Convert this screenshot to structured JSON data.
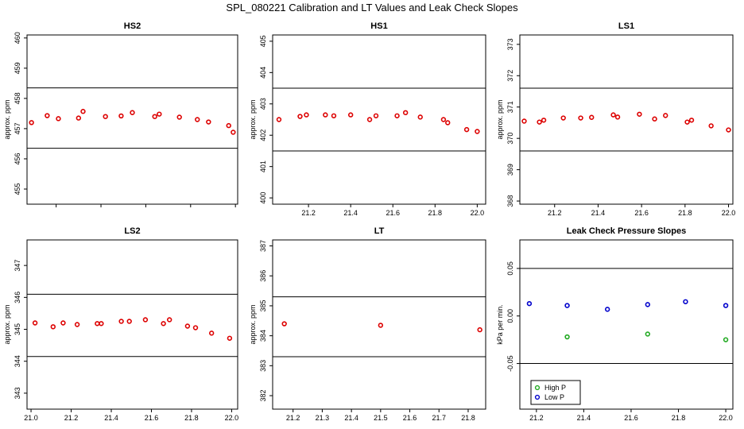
{
  "figure_title": "SPL_080221  Calibration and LT Values and Leak Check Slopes",
  "colors": {
    "data": "#dd0000",
    "high": "#22aa22",
    "low": "#0000cc",
    "axis": "#000000"
  },
  "chart_data": [
    {
      "type": "scatter",
      "title": "HS2",
      "ylabel": "approx. ppm",
      "xlim": [
        21.07,
        22.01
      ],
      "ylim": [
        454.5,
        460.1
      ],
      "xticks": [
        21.2,
        21.4,
        21.6,
        21.8,
        22.0
      ],
      "xtick_labels": [],
      "yticks": [
        455,
        456,
        457,
        458,
        459,
        460
      ],
      "hlines": [
        458.35,
        456.35
      ],
      "series": [
        {
          "x": [
            21.09,
            21.16,
            21.21,
            21.3,
            21.32,
            21.42,
            21.49,
            21.54,
            21.64,
            21.66,
            21.75,
            21.83,
            21.88,
            21.97,
            21.99
          ],
          "y": [
            457.2,
            457.43,
            457.33,
            457.35,
            457.57,
            457.4,
            457.42,
            457.53,
            457.4,
            457.48,
            457.38,
            457.3,
            457.22,
            457.1,
            456.88
          ]
        }
      ]
    },
    {
      "type": "scatter",
      "title": "HS1",
      "ylabel": "approx. ppm",
      "xlim": [
        21.03,
        22.04
      ],
      "ylim": [
        399.8,
        405.2
      ],
      "xticks": [
        21.2,
        21.4,
        21.6,
        21.8,
        22.0
      ],
      "xtick_labels": [
        "21.2",
        "21.4",
        "21.6",
        "21.8",
        "22.0"
      ],
      "yticks": [
        400,
        401,
        402,
        403,
        404,
        405
      ],
      "hlines": [
        403.5,
        401.5
      ],
      "series": [
        {
          "x": [
            21.06,
            21.16,
            21.19,
            21.28,
            21.32,
            21.4,
            21.49,
            21.52,
            21.62,
            21.66,
            21.73,
            21.84,
            21.86,
            21.95,
            22.0
          ],
          "y": [
            402.5,
            402.6,
            402.65,
            402.65,
            402.62,
            402.65,
            402.5,
            402.62,
            402.62,
            402.72,
            402.58,
            402.5,
            402.4,
            402.18,
            402.12
          ]
        }
      ]
    },
    {
      "type": "scatter",
      "title": "LS1",
      "ylabel": "approx. ppm",
      "xlim": [
        21.04,
        22.02
      ],
      "ylim": [
        367.9,
        373.3
      ],
      "xticks": [
        21.2,
        21.4,
        21.6,
        21.8,
        22.0
      ],
      "xtick_labels": [
        "21.2",
        "21.4",
        "21.6",
        "21.8",
        "22.0"
      ],
      "yticks": [
        368,
        369,
        370,
        371,
        372,
        373
      ],
      "hlines": [
        371.6,
        369.6
      ],
      "series": [
        {
          "x": [
            21.06,
            21.13,
            21.15,
            21.24,
            21.32,
            21.37,
            21.47,
            21.49,
            21.59,
            21.66,
            21.71,
            21.81,
            21.83,
            21.92,
            22.0
          ],
          "y": [
            370.55,
            370.52,
            370.58,
            370.65,
            370.65,
            370.67,
            370.75,
            370.68,
            370.77,
            370.62,
            370.73,
            370.52,
            370.58,
            370.4,
            370.27
          ]
        }
      ]
    },
    {
      "type": "scatter",
      "title": "LS2",
      "ylabel": "approx. ppm",
      "xlim": [
        20.98,
        22.03
      ],
      "ylim": [
        342.5,
        347.8
      ],
      "xticks": [
        21.0,
        21.2,
        21.4,
        21.6,
        21.8,
        22.0
      ],
      "xtick_labels": [
        "21.0",
        "21.2",
        "21.4",
        "21.6",
        "21.8",
        "22.0"
      ],
      "yticks": [
        343,
        344,
        345,
        346,
        347
      ],
      "hlines": [
        346.1,
        344.15
      ],
      "series": [
        {
          "x": [
            21.02,
            21.11,
            21.16,
            21.23,
            21.33,
            21.35,
            21.45,
            21.49,
            21.57,
            21.66,
            21.69,
            21.78,
            21.82,
            21.9,
            21.99
          ],
          "y": [
            345.2,
            345.08,
            345.2,
            345.15,
            345.18,
            345.18,
            345.25,
            345.25,
            345.3,
            345.18,
            345.3,
            345.1,
            345.05,
            344.88,
            344.72
          ]
        }
      ]
    },
    {
      "type": "scatter",
      "title": "LT",
      "ylabel": "approx. ppm",
      "xlim": [
        21.13,
        21.86
      ],
      "ylim": [
        381.55,
        387.2
      ],
      "xticks": [
        21.2,
        21.3,
        21.4,
        21.5,
        21.6,
        21.7,
        21.8
      ],
      "xtick_labels": [
        "21.2",
        "21.3",
        "21.4",
        "21.5",
        "21.6",
        "21.7",
        "21.8"
      ],
      "yticks": [
        382,
        383,
        384,
        385,
        386,
        387
      ],
      "hlines": [
        385.3,
        383.3
      ],
      "series": [
        {
          "x": [
            21.17,
            21.5,
            21.84
          ],
          "y": [
            384.4,
            384.35,
            384.2
          ]
        }
      ]
    },
    {
      "type": "scatter",
      "title": "Leak Check Pressure Slopes",
      "ylabel": "kPa per min.",
      "xlim": [
        21.13,
        22.03
      ],
      "ylim": [
        -0.098,
        0.08
      ],
      "xticks": [
        21.2,
        21.4,
        21.6,
        21.8,
        22.0
      ],
      "xtick_labels": [
        "21.2",
        "21.4",
        "21.6",
        "21.8",
        "22.0"
      ],
      "yticks": [
        -0.05,
        0.0,
        0.05
      ],
      "ytick_labels": [
        "-0.05",
        "0.00",
        "0.05"
      ],
      "hlines": [
        0.05,
        -0.05
      ],
      "legend": {
        "position": "bottom-left",
        "entries": [
          "High P",
          "Low P"
        ]
      },
      "series": [
        {
          "name": "High P",
          "x": [
            21.33,
            21.67,
            22.0
          ],
          "y": [
            -0.022,
            -0.019,
            -0.025
          ]
        },
        {
          "name": "Low P",
          "x": [
            21.17,
            21.33,
            21.5,
            21.67,
            21.83,
            22.0
          ],
          "y": [
            0.013,
            0.011,
            0.007,
            0.012,
            0.015,
            0.011
          ]
        }
      ]
    }
  ]
}
